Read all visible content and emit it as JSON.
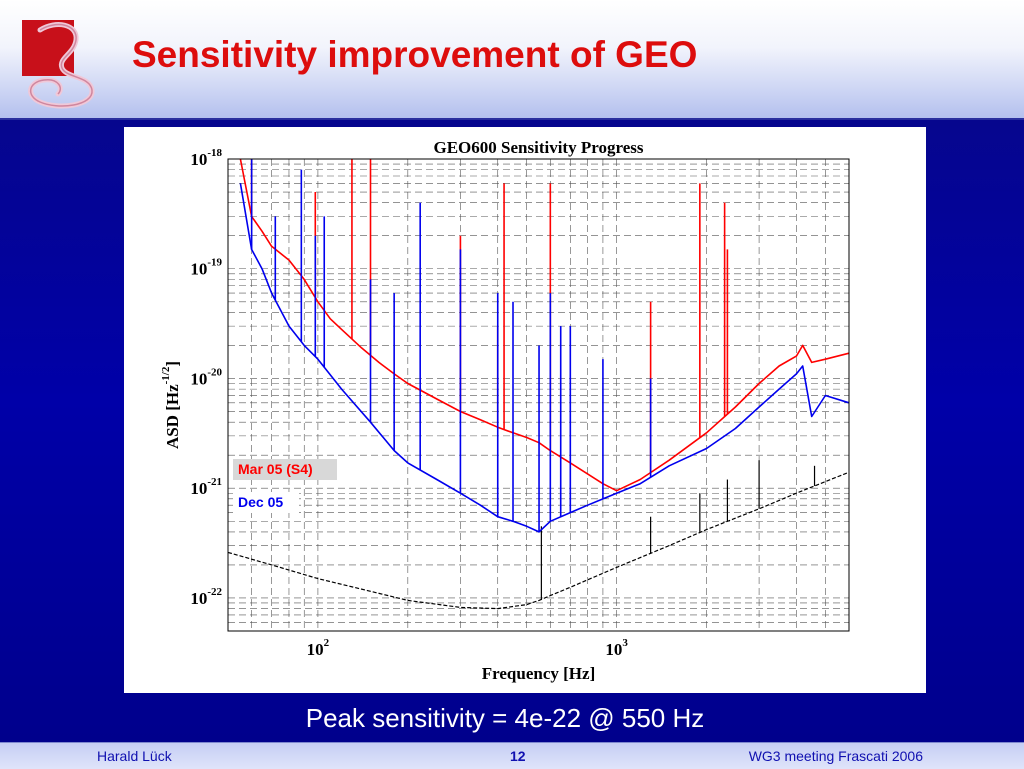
{
  "slide": {
    "title": "Sensitivity improvement of GEO",
    "caption": "Peak sensitivity = 4e-22 @ 550 Hz"
  },
  "footer": {
    "author": "Harald Lück",
    "page": "12",
    "event": "WG3 meeting Frascati 2006"
  },
  "colors": {
    "title": "#dd0d0d",
    "background": "#00007a",
    "mar05": "#ff0000",
    "dec05": "#0000ee",
    "reference": "#000000"
  },
  "logo": {
    "icon": "geo-logo-icon"
  },
  "chart_data": {
    "type": "line",
    "title": "GEO600 Sensitivity Progress",
    "xlabel": "Frequency [Hz]",
    "ylabel": "ASD [Hz^-1/2]",
    "x_scale": "log",
    "y_scale": "log",
    "xlim": [
      50,
      6000
    ],
    "ylim": [
      5e-23,
      1e-18
    ],
    "grid": true,
    "x_ticks": [
      {
        "base": "10",
        "exp": "2",
        "value": 100
      },
      {
        "base": "10",
        "exp": "3",
        "value": 1000
      }
    ],
    "y_ticks": [
      {
        "base": "10",
        "exp": "-18",
        "value": 1e-18
      },
      {
        "base": "10",
        "exp": "-19",
        "value": 1e-19
      },
      {
        "base": "10",
        "exp": "-20",
        "value": 1e-20
      },
      {
        "base": "10",
        "exp": "-21",
        "value": 1e-21
      },
      {
        "base": "10",
        "exp": "-22",
        "value": 1e-22
      }
    ],
    "legend_position": "lower-left",
    "series": [
      {
        "name": "Mar 05 (S4)",
        "color": "#ff0000",
        "x": [
          55,
          60,
          65,
          70,
          80,
          90,
          100,
          110,
          120,
          140,
          160,
          180,
          200,
          250,
          300,
          350,
          400,
          450,
          500,
          550,
          600,
          700,
          800,
          900,
          1000,
          1200,
          1500,
          2000,
          2500,
          3000,
          3500,
          4000,
          4200,
          4500,
          5000,
          6000
        ],
        "y": [
          1e-18,
          3e-19,
          2.2e-19,
          1.6e-19,
          1.2e-19,
          8e-20,
          5e-20,
          3.5e-20,
          2.8e-20,
          1.9e-20,
          1.4e-20,
          1.1e-20,
          9e-21,
          6.5e-21,
          5e-21,
          4.2e-21,
          3.6e-21,
          3.2e-21,
          2.9e-21,
          2.6e-21,
          2.2e-21,
          1.7e-21,
          1.35e-21,
          1.1e-21,
          9.5e-22,
          1.2e-21,
          1.8e-21,
          3.2e-21,
          5.5e-21,
          9e-21,
          1.3e-20,
          1.6e-20,
          2e-20,
          1.4e-20,
          1.5e-20,
          1.7e-20
        ],
        "lines": [
          {
            "x": 60,
            "peak": 1e-18
          },
          {
            "x": 98,
            "peak": 5e-19
          },
          {
            "x": 130,
            "peak": 1e-18
          },
          {
            "x": 150,
            "peak": 1e-18
          },
          {
            "x": 300,
            "peak": 2e-19
          },
          {
            "x": 400,
            "peak": 3e-20
          },
          {
            "x": 420,
            "peak": 6e-19
          },
          {
            "x": 600,
            "peak": 6e-19
          },
          {
            "x": 1300,
            "peak": 5e-20
          },
          {
            "x": 1900,
            "peak": 6e-19
          },
          {
            "x": 2300,
            "peak": 4e-19
          },
          {
            "x": 2350,
            "peak": 1.5e-19
          }
        ]
      },
      {
        "name": "Dec 05",
        "color": "#0000ee",
        "x": [
          55,
          60,
          65,
          70,
          80,
          90,
          100,
          120,
          150,
          180,
          200,
          250,
          300,
          350,
          400,
          450,
          500,
          550,
          600,
          700,
          800,
          900,
          1000,
          1200,
          1500,
          2000,
          2500,
          3000,
          3500,
          4000,
          4200,
          4500,
          5000,
          6000
        ],
        "y": [
          6e-19,
          1.5e-19,
          1e-19,
          6e-20,
          3e-20,
          2e-20,
          1.5e-20,
          8e-21,
          4e-21,
          2.2e-21,
          1.7e-21,
          1.2e-21,
          9e-22,
          7e-22,
          5.5e-22,
          5e-22,
          4.5e-22,
          4e-22,
          5e-22,
          6e-22,
          7e-22,
          8e-22,
          9e-22,
          1.1e-21,
          1.6e-21,
          2.3e-21,
          3.5e-21,
          5.5e-21,
          8e-21,
          1.1e-20,
          1.3e-20,
          4.5e-21,
          7e-21,
          6e-21
        ],
        "lines": [
          {
            "x": 60,
            "peak": 1e-18
          },
          {
            "x": 72,
            "peak": 3e-19
          },
          {
            "x": 88,
            "peak": 8e-19
          },
          {
            "x": 98,
            "peak": 2e-19
          },
          {
            "x": 105,
            "peak": 3e-19
          },
          {
            "x": 150,
            "peak": 8e-20
          },
          {
            "x": 180,
            "peak": 6e-20
          },
          {
            "x": 220,
            "peak": 4e-19
          },
          {
            "x": 300,
            "peak": 1.5e-19
          },
          {
            "x": 400,
            "peak": 6e-20
          },
          {
            "x": 450,
            "peak": 5e-20
          },
          {
            "x": 550,
            "peak": 2e-20
          },
          {
            "x": 600,
            "peak": 6e-20
          },
          {
            "x": 650,
            "peak": 3e-20
          },
          {
            "x": 700,
            "peak": 3e-20
          },
          {
            "x": 900,
            "peak": 1.5e-20
          },
          {
            "x": 1300,
            "peak": 1e-20
          }
        ]
      },
      {
        "name": "",
        "color": "#000000",
        "style": "dashed",
        "x": [
          50,
          70,
          100,
          150,
          200,
          300,
          400,
          500,
          550,
          600,
          700,
          1000,
          1500,
          2000,
          3000,
          4000,
          5000,
          6000
        ],
        "y": [
          2.6e-22,
          2e-22,
          1.5e-22,
          1.15e-22,
          9.5e-23,
          8.2e-23,
          8e-23,
          8.7e-23,
          9.5e-23,
          1.05e-22,
          1.25e-22,
          1.9e-22,
          3e-22,
          4.2e-22,
          6.5e-22,
          9e-22,
          1.15e-21,
          1.4e-21
        ],
        "lines": [
          {
            "x": 560,
            "peak": 4.5e-22
          },
          {
            "x": 1300,
            "peak": 5.5e-22
          },
          {
            "x": 1900,
            "peak": 9e-22
          },
          {
            "x": 2350,
            "peak": 1.2e-21
          },
          {
            "x": 3000,
            "peak": 1.8e-21
          },
          {
            "x": 4600,
            "peak": 1.6e-21
          }
        ]
      }
    ]
  }
}
